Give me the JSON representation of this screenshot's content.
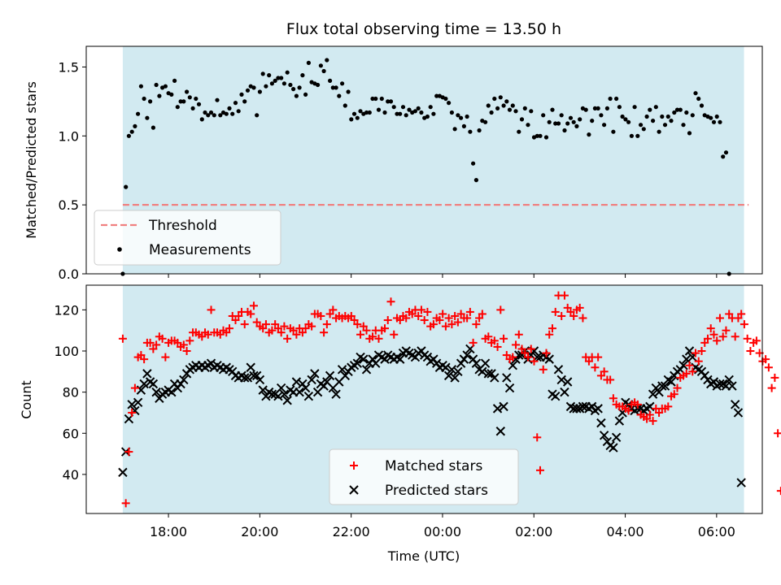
{
  "chart_data": [
    {
      "type": "scatter",
      "title": "Flux total observing time = 13.50 h",
      "ylabel": "Matched/Predicted stars",
      "xlabel": "",
      "ylim": [
        0,
        1.65
      ],
      "yticks": [
        "0.0",
        "0.5",
        "1.0",
        "1.5"
      ],
      "ytick_values": [
        0,
        0.5,
        1.0,
        1.5
      ],
      "shaded_interval_hours": [
        17.0,
        30.6
      ],
      "threshold": {
        "name": "Threshold",
        "value": 0.5,
        "x_range_hours": [
          17.0,
          30.7
        ],
        "color": "#f08080"
      },
      "legend": {
        "placement": "lower-left",
        "entries": [
          "Threshold",
          "Measurements"
        ]
      },
      "series": [
        {
          "name": "Measurements",
          "color": "#000000",
          "x_start_hour": 17.0,
          "x_step_hour": 0.0667,
          "values": [
            0.0,
            0.63,
            1.0,
            1.03,
            1.07,
            1.16,
            1.36,
            1.27,
            1.13,
            1.25,
            1.06,
            1.37,
            1.29,
            1.35,
            1.36,
            1.31,
            1.3,
            1.4,
            1.21,
            1.25,
            1.25,
            1.32,
            1.28,
            1.2,
            1.27,
            1.23,
            1.12,
            1.17,
            1.15,
            1.17,
            1.15,
            1.26,
            1.15,
            1.17,
            1.16,
            1.2,
            1.16,
            1.24,
            1.18,
            1.3,
            1.25,
            1.33,
            1.36,
            1.35,
            1.15,
            1.32,
            1.45,
            1.36,
            1.44,
            1.38,
            1.4,
            1.42,
            1.42,
            1.38,
            1.46,
            1.37,
            1.34,
            1.29,
            1.35,
            1.44,
            1.3,
            1.53,
            1.39,
            1.38,
            1.37,
            1.51,
            1.47,
            1.55,
            1.4,
            1.35,
            1.35,
            1.29,
            1.38,
            1.22,
            1.32,
            1.12,
            1.16,
            1.13,
            1.18,
            1.16,
            1.17,
            1.17,
            1.27,
            1.27,
            1.19,
            1.27,
            1.17,
            1.25,
            1.25,
            1.21,
            1.16,
            1.16,
            1.21,
            1.15,
            1.19,
            1.17,
            1.18,
            1.2,
            1.17,
            1.13,
            1.14,
            1.21,
            1.16,
            1.29,
            1.29,
            1.28,
            1.27,
            1.24,
            1.17,
            1.05,
            1.15,
            1.13,
            1.07,
            1.14,
            1.03,
            0.8,
            0.68,
            1.04,
            1.11,
            1.1,
            1.22,
            1.17,
            1.27,
            1.2,
            1.28,
            1.22,
            1.25,
            1.19,
            1.22,
            1.18,
            1.03,
            1.12,
            1.2,
            1.08,
            1.18,
            0.99,
            1.0,
            1.0,
            1.15,
            0.99,
            1.1,
            1.19,
            1.09,
            1.09,
            1.15,
            1.04,
            1.09,
            1.13,
            1.1,
            1.07,
            1.12,
            1.2,
            1.19,
            1.01,
            1.11,
            1.2,
            1.2,
            1.15,
            1.08,
            1.2,
            1.27,
            1.03,
            1.27,
            1.21,
            1.14,
            1.12,
            1.1,
            1.0,
            1.21,
            1.0,
            1.08,
            1.05,
            1.14,
            1.19,
            1.11,
            1.21,
            1.03,
            1.14,
            1.08,
            1.14,
            1.11,
            1.17,
            1.19,
            1.19,
            1.08,
            1.17,
            1.02,
            1.15,
            1.31,
            1.27,
            1.22,
            1.15,
            1.14,
            1.13,
            1.1,
            1.14,
            1.1,
            0.85,
            0.88,
            0.0
          ]
        }
      ]
    },
    {
      "type": "scatter",
      "title": "",
      "ylabel": "Count",
      "xlabel": "Time (UTC)",
      "xlim_hours": [
        16.2,
        31.0
      ],
      "xticks": [
        "18:00",
        "20:00",
        "22:00",
        "00:00",
        "02:00",
        "04:00",
        "06:00"
      ],
      "xtick_hours": [
        18,
        20,
        22,
        24,
        26,
        28,
        30
      ],
      "ylim": [
        21,
        132
      ],
      "yticks": [
        "40",
        "60",
        "80",
        "100",
        "120"
      ],
      "ytick_values": [
        40,
        60,
        80,
        100,
        120
      ],
      "shaded_interval_hours": [
        17.0,
        30.6
      ],
      "legend": {
        "placement": "lower-center",
        "entries": [
          "Matched stars",
          "Predicted stars"
        ]
      },
      "series": [
        {
          "name": "Matched stars",
          "marker": "plus",
          "color": "#ff0000",
          "x_start_hour": 17.0,
          "x_step_hour": 0.0667,
          "values": [
            106,
            26,
            51,
            70,
            82,
            97,
            98,
            96,
            104,
            104,
            101,
            103,
            107,
            106,
            97,
            104,
            105,
            105,
            104,
            102,
            103,
            100,
            105,
            109,
            109,
            108,
            107,
            109,
            108,
            120,
            109,
            109,
            108,
            110,
            109,
            111,
            117,
            115,
            117,
            119,
            113,
            119,
            118,
            122,
            114,
            112,
            111,
            113,
            109,
            110,
            113,
            111,
            109,
            112,
            106,
            111,
            110,
            108,
            111,
            109,
            111,
            113,
            112,
            118,
            118,
            117,
            109,
            113,
            118,
            120,
            116,
            117,
            116,
            117,
            116,
            117,
            115,
            113,
            108,
            112,
            110,
            106,
            107,
            110,
            106,
            110,
            111,
            115,
            124,
            108,
            116,
            115,
            117,
            116,
            119,
            118,
            120,
            117,
            120,
            115,
            119,
            112,
            113,
            116,
            115,
            118,
            112,
            116,
            113,
            117,
            114,
            118,
            116,
            116,
            119,
            104,
            113,
            116,
            118,
            106,
            107,
            104,
            105,
            102,
            120,
            106,
            98,
            96,
            97,
            103,
            108,
            101,
            99,
            97,
            101,
            95,
            58,
            42,
            91,
            99,
            108,
            111,
            119,
            127,
            117,
            127,
            121,
            119,
            117,
            120,
            121,
            116,
            97,
            95,
            97,
            92,
            97,
            88,
            90,
            86,
            86,
            77,
            74,
            73,
            73,
            72,
            71,
            74,
            75,
            74,
            69,
            68,
            67,
            69,
            66,
            72,
            70,
            72,
            72,
            73,
            78,
            79,
            82,
            87,
            88,
            89,
            93,
            90,
            99,
            95,
            100,
            104,
            106,
            111,
            108,
            105,
            116,
            107,
            110,
            118,
            116,
            107,
            116,
            118,
            113,
            106,
            100,
            104,
            105,
            99,
            95,
            96,
            92,
            82,
            87,
            60,
            32,
            32
          ]
        },
        {
          "name": "Predicted stars",
          "marker": "x",
          "color": "#000000",
          "x_start_hour": 17.0,
          "x_step_hour": 0.0667,
          "values": [
            41,
            51,
            67,
            74,
            71,
            75,
            81,
            84,
            89,
            85,
            84,
            80,
            77,
            79,
            80,
            81,
            80,
            84,
            82,
            84,
            86,
            89,
            91,
            92,
            93,
            92,
            93,
            92,
            93,
            94,
            92,
            93,
            92,
            91,
            92,
            91,
            90,
            88,
            87,
            88,
            87,
            87,
            92,
            88,
            88,
            86,
            81,
            78,
            80,
            79,
            79,
            78,
            82,
            79,
            76,
            81,
            80,
            85,
            80,
            84,
            82,
            78,
            86,
            89,
            80,
            84,
            83,
            85,
            88,
            82,
            79,
            85,
            91,
            88,
            90,
            92,
            93,
            94,
            97,
            96,
            91,
            94,
            96,
            94,
            98,
            97,
            96,
            98,
            97,
            96,
            97,
            96,
            99,
            100,
            99,
            98,
            97,
            99,
            100,
            98,
            97,
            95,
            96,
            94,
            92,
            93,
            92,
            88,
            91,
            87,
            90,
            94,
            96,
            98,
            101,
            96,
            94,
            91,
            90,
            94,
            89,
            89,
            87,
            72,
            61,
            73,
            87,
            82,
            93,
            96,
            98,
            98,
            100,
            96,
            98,
            100,
            97,
            97,
            98,
            97,
            96,
            79,
            78,
            91,
            86,
            80,
            85,
            73,
            72,
            72,
            72,
            73,
            73,
            72,
            73,
            71,
            72,
            65,
            59,
            56,
            54,
            53,
            58,
            66,
            70,
            75,
            74,
            72,
            71,
            72,
            72,
            71,
            72,
            73,
            79,
            82,
            80,
            83,
            83,
            86,
            85,
            88,
            90,
            91,
            93,
            96,
            100,
            97,
            92,
            91,
            90,
            88,
            86,
            84,
            85,
            83,
            84,
            84,
            83,
            86,
            83,
            74,
            70,
            36
          ]
        }
      ]
    }
  ]
}
